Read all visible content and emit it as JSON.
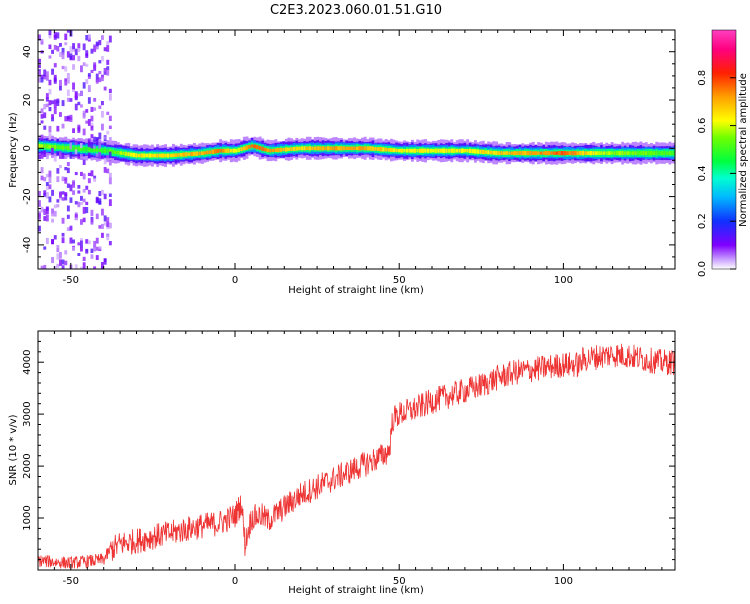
{
  "title": "C2E3.2023.060.01.51.G10",
  "chart_data": [
    {
      "type": "heatmap",
      "xlabel": "Height of straight line (km)",
      "ylabel": "Frequency (Hz)",
      "xlim": [
        -60,
        134
      ],
      "ylim": [
        -50,
        49
      ],
      "xticks": [
        -50,
        0,
        50,
        100
      ],
      "yticks": [
        -40,
        -20,
        0,
        20,
        40
      ],
      "colorbar": {
        "label": "Normalized spectral amplitude",
        "ticks": [
          "0.0",
          "0.2",
          "0.4",
          "0.6",
          "0.8"
        ],
        "range": [
          0,
          1
        ],
        "colormap": "gist_ncar-like (white, purple, blue, cyan, green, yellow, orange, red, magenta)"
      },
      "ridge": {
        "description": "dominant frequency ridge near 0 Hz",
        "height_km": [
          -60,
          -50,
          -40,
          -30,
          -20,
          -10,
          -5,
          0,
          5,
          10,
          20,
          30,
          40,
          50,
          60,
          70,
          80,
          90,
          100,
          110,
          120,
          134
        ],
        "frequency_hz": [
          1,
          0,
          -1,
          -3,
          -3,
          -2,
          -1,
          -1,
          1,
          -1,
          0,
          0,
          0,
          -1,
          -1,
          -1,
          -2,
          -2,
          -2,
          -2,
          -2,
          -2
        ],
        "peak_amplitude": [
          0.7,
          0.6,
          0.6,
          0.75,
          0.8,
          0.85,
          0.9,
          0.7,
          0.95,
          0.85,
          0.8,
          0.85,
          0.85,
          0.75,
          0.75,
          0.75,
          0.8,
          0.85,
          0.95,
          0.7,
          0.65,
          0.6
        ]
      },
      "grid": false
    },
    {
      "type": "line",
      "xlabel": "Height of straight line (km)",
      "ylabel": "SNR (10 * v/v)",
      "xlim": [
        -60,
        134
      ],
      "ylim": [
        0,
        4600
      ],
      "xticks": [
        -50,
        0,
        50,
        100
      ],
      "yticks": [
        1000,
        2000,
        3000,
        4000
      ],
      "series": [
        {
          "color": "#ee3333",
          "x": [
            -60,
            -50,
            -40,
            -38,
            -35,
            -30,
            -25,
            -20,
            -15,
            -10,
            -5,
            -2,
            0,
            2,
            3,
            5,
            8,
            10,
            15,
            20,
            25,
            30,
            35,
            40,
            45,
            47,
            48,
            50,
            55,
            60,
            65,
            70,
            75,
            80,
            85,
            90,
            95,
            100,
            105,
            106,
            110,
            115,
            120,
            125,
            130,
            134
          ],
          "y": [
            180,
            130,
            200,
            380,
            500,
            560,
            640,
            700,
            780,
            850,
            900,
            980,
            1050,
            1300,
            500,
            1000,
            1050,
            950,
            1200,
            1450,
            1600,
            1750,
            1900,
            2050,
            2200,
            2300,
            2900,
            3000,
            3100,
            3250,
            3350,
            3450,
            3550,
            3700,
            3800,
            3850,
            3900,
            3950,
            3950,
            4050,
            4100,
            4150,
            4120,
            4050,
            4000,
            4000
          ],
          "noise_amplitude": 250
        }
      ],
      "grid": false
    }
  ]
}
